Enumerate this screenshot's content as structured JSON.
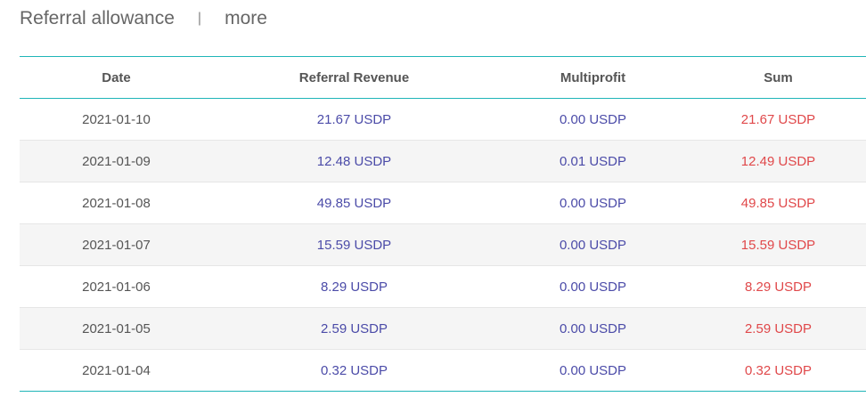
{
  "header": {
    "title": "Referral allowance",
    "separator": "|",
    "more_label": "more"
  },
  "table": {
    "columns": [
      "Date",
      "Referral Revenue",
      "Multiprofit",
      "Sum"
    ],
    "rows": [
      {
        "date": "2021-01-10",
        "revenue": "21.67 USDP",
        "multiprofit": "0.00 USDP",
        "sum": "21.67 USDP"
      },
      {
        "date": "2021-01-09",
        "revenue": "12.48 USDP",
        "multiprofit": "0.01 USDP",
        "sum": "12.49 USDP"
      },
      {
        "date": "2021-01-08",
        "revenue": "49.85 USDP",
        "multiprofit": "0.00 USDP",
        "sum": "49.85 USDP"
      },
      {
        "date": "2021-01-07",
        "revenue": "15.59 USDP",
        "multiprofit": "0.00 USDP",
        "sum": "15.59 USDP"
      },
      {
        "date": "2021-01-06",
        "revenue": "8.29 USDP",
        "multiprofit": "0.00 USDP",
        "sum": "8.29 USDP"
      },
      {
        "date": "2021-01-05",
        "revenue": "2.59 USDP",
        "multiprofit": "0.00 USDP",
        "sum": "2.59 USDP"
      },
      {
        "date": "2021-01-04",
        "revenue": "0.32 USDP",
        "multiprofit": "0.00 USDP",
        "sum": "0.32 USDP"
      }
    ]
  },
  "colors": {
    "accent_border": "#1fb5b8",
    "value_blue": "#4b4ba8",
    "sum_red": "#e0484a",
    "stripe": "#f5f5f5"
  }
}
